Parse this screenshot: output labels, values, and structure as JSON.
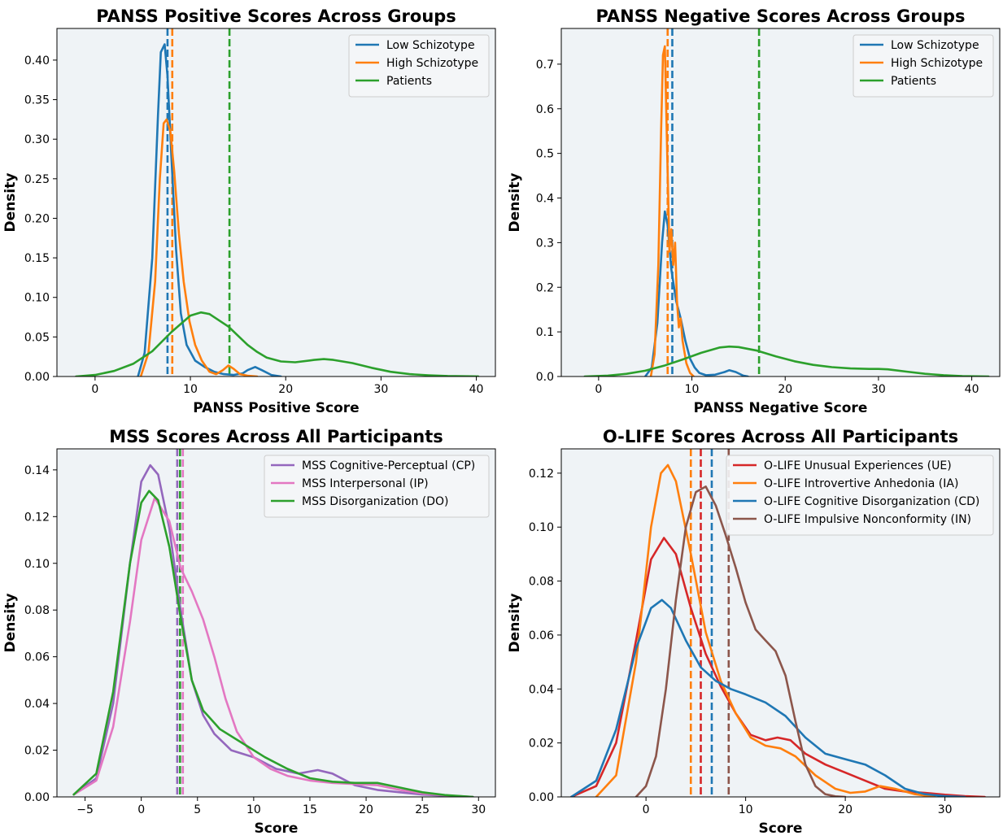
{
  "chart_data": [
    {
      "type": "line",
      "title": "PANSS Positive Scores Across Groups",
      "xlabel": "PANSS Positive Score",
      "ylabel": "Density",
      "xlim": [
        -4,
        42
      ],
      "ylim": [
        0,
        0.44
      ],
      "xticks": [
        0,
        10,
        20,
        30,
        40
      ],
      "yticks": [
        0.0,
        0.05,
        0.1,
        0.15,
        0.2,
        0.25,
        0.3,
        0.35,
        0.4
      ],
      "ytick_decimals": 2,
      "grid": false,
      "legend_position": "top-right",
      "series": [
        {
          "name": "Low Schizotype",
          "color": "#1f77b4",
          "x": [
            4.5,
            5.2,
            6.0,
            6.6,
            6.9,
            7.3,
            7.6,
            8.0,
            8.5,
            9.0,
            9.6,
            10.5,
            11.5,
            12.5,
            13.5,
            14.5,
            15.5,
            16.0,
            16.8,
            17.5,
            18.5,
            19.5
          ],
          "y": [
            0.0,
            0.03,
            0.15,
            0.33,
            0.41,
            0.42,
            0.38,
            0.28,
            0.16,
            0.08,
            0.04,
            0.02,
            0.012,
            0.006,
            0.003,
            0.002,
            0.004,
            0.008,
            0.012,
            0.008,
            0.002,
            0.0
          ]
        },
        {
          "name": "High Schizotype",
          "color": "#ff7f0e",
          "x": [
            4.8,
            5.6,
            6.3,
            6.8,
            7.2,
            7.5,
            7.9,
            8.3,
            8.8,
            9.3,
            9.9,
            10.5,
            11.2,
            12.0,
            12.7,
            13.4,
            14.0,
            14.5,
            15.2,
            16.0,
            17.0
          ],
          "y": [
            0.0,
            0.03,
            0.12,
            0.25,
            0.32,
            0.325,
            0.31,
            0.26,
            0.18,
            0.12,
            0.07,
            0.04,
            0.02,
            0.006,
            0.003,
            0.008,
            0.014,
            0.01,
            0.003,
            0.001,
            0.0
          ]
        },
        {
          "name": "Patients",
          "color": "#2ca02c",
          "x": [
            -2,
            0,
            2,
            4,
            6,
            8,
            10,
            11.1,
            12,
            14,
            16,
            17,
            18,
            19.5,
            21,
            23,
            24,
            25,
            27,
            29,
            31,
            33,
            35,
            37,
            40.2
          ],
          "y": [
            0.0,
            0.002,
            0.007,
            0.016,
            0.032,
            0.056,
            0.077,
            0.081,
            0.079,
            0.063,
            0.04,
            0.031,
            0.024,
            0.019,
            0.018,
            0.021,
            0.022,
            0.021,
            0.017,
            0.011,
            0.006,
            0.003,
            0.0015,
            0.0006,
            0.0001
          ]
        }
      ],
      "vlines": [
        {
          "x": 7.6,
          "color": "#1f77b4"
        },
        {
          "x": 8.1,
          "color": "#ff7f0e"
        },
        {
          "x": 14.1,
          "color": "#2ca02c"
        }
      ]
    },
    {
      "type": "line",
      "title": "PANSS Negative Scores Across Groups",
      "xlabel": "PANSS Negative Score",
      "ylabel": "Density",
      "xlim": [
        -4,
        43
      ],
      "ylim": [
        0,
        0.78
      ],
      "xticks": [
        0,
        10,
        20,
        30,
        40
      ],
      "yticks": [
        0.0,
        0.1,
        0.2,
        0.3,
        0.4,
        0.5,
        0.6,
        0.7
      ],
      "ytick_decimals": 1,
      "grid": false,
      "legend_position": "top-right",
      "series": [
        {
          "name": "Low Schizotype",
          "color": "#1f77b4",
          "x": [
            5.0,
            5.7,
            6.3,
            6.8,
            7.1,
            7.4,
            7.8,
            8.3,
            8.8,
            9.3,
            9.8,
            10.3,
            10.8,
            11.5,
            12.5,
            13.5,
            14.0,
            14.7,
            15.5,
            16.0
          ],
          "y": [
            0.0,
            0.02,
            0.12,
            0.3,
            0.37,
            0.34,
            0.24,
            0.17,
            0.13,
            0.08,
            0.04,
            0.02,
            0.008,
            0.003,
            0.004,
            0.01,
            0.014,
            0.01,
            0.002,
            0.0
          ]
        },
        {
          "name": "High Schizotype",
          "color": "#ff7f0e",
          "x": [
            5.6,
            6.0,
            6.4,
            6.7,
            6.9,
            7.1,
            7.35,
            7.6,
            7.8,
            8.0,
            8.2,
            8.4,
            8.6,
            8.8,
            9.0,
            9.4,
            9.8,
            10.2
          ],
          "y": [
            0.0,
            0.05,
            0.25,
            0.55,
            0.72,
            0.74,
            0.5,
            0.28,
            0.33,
            0.25,
            0.3,
            0.17,
            0.11,
            0.13,
            0.08,
            0.03,
            0.008,
            0.0
          ]
        },
        {
          "name": "Patients",
          "color": "#2ca02c",
          "x": [
            -1.5,
            1,
            3,
            5,
            7,
            9,
            11,
            13,
            14,
            15,
            17,
            19,
            21,
            23,
            25,
            27,
            29,
            30,
            31,
            33,
            35,
            37,
            39,
            41.8
          ],
          "y": [
            0.0,
            0.002,
            0.006,
            0.013,
            0.024,
            0.038,
            0.053,
            0.065,
            0.067,
            0.066,
            0.058,
            0.045,
            0.034,
            0.026,
            0.021,
            0.018,
            0.017,
            0.017,
            0.016,
            0.011,
            0.006,
            0.003,
            0.001,
            0.0
          ]
        }
      ],
      "vlines": [
        {
          "x": 7.4,
          "color": "#ff7f0e"
        },
        {
          "x": 7.9,
          "color": "#1f77b4"
        },
        {
          "x": 17.2,
          "color": "#2ca02c"
        }
      ]
    },
    {
      "type": "line",
      "title": "MSS Scores Across All Participants",
      "xlabel": "Score",
      "ylabel": "Density",
      "xlim": [
        -7.5,
        31.5
      ],
      "ylim": [
        0,
        0.149
      ],
      "xticks": [
        -5,
        0,
        5,
        10,
        15,
        20,
        25,
        30
      ],
      "yticks": [
        0.0,
        0.02,
        0.04,
        0.06,
        0.08,
        0.1,
        0.12,
        0.14
      ],
      "ytick_decimals": 2,
      "grid": false,
      "legend_position": "top-right",
      "series": [
        {
          "name": "MSS Cognitive-Perceptual (CP)",
          "color": "#9467bd",
          "x": [
            -6,
            -4,
            -2.5,
            -1,
            0,
            0.8,
            1.5,
            2.5,
            3.5,
            4.5,
            5.5,
            6.5,
            8,
            10,
            12,
            14,
            15.7,
            17,
            19,
            21,
            23,
            25,
            27,
            29.5
          ],
          "y": [
            0.001,
            0.008,
            0.04,
            0.1,
            0.135,
            0.142,
            0.138,
            0.115,
            0.08,
            0.05,
            0.035,
            0.027,
            0.02,
            0.017,
            0.012,
            0.01,
            0.0115,
            0.01,
            0.005,
            0.003,
            0.002,
            0.001,
            0.0005,
            0.0
          ]
        },
        {
          "name": "MSS Interpersonal (IP)",
          "color": "#e377c2",
          "x": [
            -6,
            -4,
            -2.5,
            -1,
            0,
            1.2,
            2.5,
            3.5,
            4.5,
            5.5,
            6.5,
            7.5,
            8.5,
            10,
            11.5,
            13,
            15,
            17,
            19,
            21,
            23,
            25,
            27,
            29.5
          ],
          "y": [
            0.001,
            0.007,
            0.03,
            0.075,
            0.11,
            0.128,
            0.118,
            0.098,
            0.088,
            0.076,
            0.06,
            0.042,
            0.028,
            0.017,
            0.012,
            0.009,
            0.007,
            0.006,
            0.0055,
            0.005,
            0.003,
            0.0015,
            0.0007,
            0.0
          ]
        },
        {
          "name": "MSS Disorganization (DO)",
          "color": "#2ca02c",
          "x": [
            -6,
            -4,
            -2.5,
            -1,
            0,
            0.7,
            1.5,
            2.5,
            3.5,
            4.5,
            5.5,
            7,
            9,
            11,
            13,
            15,
            17,
            19,
            21,
            23,
            25,
            27,
            29.5
          ],
          "y": [
            0.001,
            0.01,
            0.045,
            0.1,
            0.126,
            0.131,
            0.127,
            0.107,
            0.077,
            0.05,
            0.037,
            0.029,
            0.023,
            0.017,
            0.012,
            0.008,
            0.0065,
            0.006,
            0.006,
            0.004,
            0.002,
            0.0008,
            0.0
          ]
        }
      ],
      "vlines": [
        {
          "x": 3.2,
          "color": "#9467bd"
        },
        {
          "x": 3.45,
          "color": "#2ca02c"
        },
        {
          "x": 3.7,
          "color": "#e377c2"
        }
      ]
    },
    {
      "type": "line",
      "title": "O-LIFE Scores Across All Participants",
      "xlabel": "Score",
      "ylabel": "Density",
      "xlim": [
        -8.5,
        35.5
      ],
      "ylim": [
        0,
        0.129
      ],
      "xticks": [
        0,
        10,
        20,
        30
      ],
      "yticks": [
        0.0,
        0.02,
        0.04,
        0.06,
        0.08,
        0.1,
        0.12
      ],
      "ytick_decimals": 2,
      "grid": false,
      "legend_position": "top-right",
      "series": [
        {
          "name": "O-LIFE Unusual Experiences (UE)",
          "color": "#d62728",
          "x": [
            -7.5,
            -5,
            -3,
            -1,
            0.5,
            1.8,
            3,
            4.5,
            6,
            7.5,
            9,
            10.5,
            12,
            13.2,
            14.5,
            16,
            18,
            20,
            22,
            24,
            26,
            28,
            30,
            32,
            34
          ],
          "y": [
            0.0,
            0.004,
            0.02,
            0.058,
            0.088,
            0.096,
            0.09,
            0.07,
            0.053,
            0.041,
            0.031,
            0.023,
            0.021,
            0.022,
            0.021,
            0.016,
            0.012,
            0.009,
            0.006,
            0.003,
            0.002,
            0.0015,
            0.0008,
            0.0003,
            0.0
          ]
        },
        {
          "name": "O-LIFE Introvertive Anhedonia (IA)",
          "color": "#ff7f0e",
          "x": [
            -5,
            -3,
            -1,
            0.5,
            1.5,
            2.2,
            3,
            4.5,
            6,
            7.5,
            9,
            10.5,
            12,
            13.5,
            15,
            17,
            19,
            20.5,
            22,
            23.5,
            25,
            27,
            29
          ],
          "y": [
            0.0,
            0.008,
            0.05,
            0.1,
            0.12,
            0.123,
            0.117,
            0.09,
            0.061,
            0.043,
            0.031,
            0.022,
            0.019,
            0.018,
            0.015,
            0.008,
            0.003,
            0.0015,
            0.002,
            0.004,
            0.003,
            0.001,
            0.0
          ]
        },
        {
          "name": "O-LIFE Cognitive Disorganization (CD)",
          "color": "#1f77b4",
          "x": [
            -7.5,
            -5,
            -3,
            -1,
            0.5,
            1.6,
            2.5,
            4,
            5.5,
            7,
            8.5,
            10,
            12,
            14,
            16,
            18,
            20,
            22,
            24,
            26,
            28,
            30,
            32
          ],
          "y": [
            0.0,
            0.006,
            0.025,
            0.055,
            0.07,
            0.073,
            0.07,
            0.058,
            0.048,
            0.043,
            0.04,
            0.038,
            0.035,
            0.03,
            0.022,
            0.016,
            0.014,
            0.012,
            0.008,
            0.003,
            0.001,
            0.0003,
            0.0
          ]
        },
        {
          "name": "O-LIFE Impulsive Nonconformity (IN)",
          "color": "#8c564b",
          "x": [
            -1,
            0,
            1,
            2,
            3,
            4,
            5,
            6,
            7,
            8,
            9,
            10,
            11,
            12,
            13,
            14,
            15,
            16,
            17,
            18,
            19,
            20
          ],
          "y": [
            0.0,
            0.004,
            0.015,
            0.04,
            0.073,
            0.1,
            0.113,
            0.115,
            0.108,
            0.097,
            0.085,
            0.072,
            0.062,
            0.058,
            0.054,
            0.045,
            0.028,
            0.012,
            0.004,
            0.001,
            0.0002,
            0.0
          ]
        }
      ],
      "vlines": [
        {
          "x": 4.5,
          "color": "#ff7f0e"
        },
        {
          "x": 5.5,
          "color": "#d62728"
        },
        {
          "x": 6.6,
          "color": "#1f77b4"
        },
        {
          "x": 8.3,
          "color": "#8c564b"
        }
      ]
    }
  ]
}
